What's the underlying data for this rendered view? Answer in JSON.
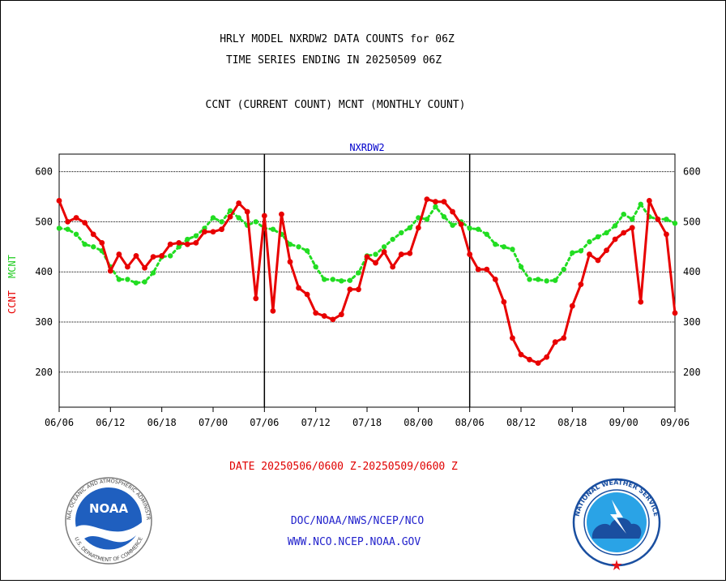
{
  "titles": {
    "line1": "HRLY MODEL NXRDW2 DATA COUNTS for 06Z",
    "line2": "TIME SERIES ENDING IN 20250509 06Z",
    "line3": "CCNT (CURRENT COUNT) MCNT (MONTHLY COUNT)"
  },
  "footer": {
    "date_range": "DATE 20250506/0600 Z-20250509/0600 Z",
    "org": "DOC/NOAA/NWS/NCEP/NCO",
    "url": "WWW.NCO.NCEP.NOAA.GOV"
  },
  "logos": {
    "noaa_word": "NOAA",
    "noaa_ring_top": "NATIONAL OCEANIC AND ATMOSPHERIC ADMINISTRATION",
    "noaa_ring_bottom": "U.S. DEPARTMENT OF COMMERCE",
    "nws_ring": "NATIONAL WEATHER SERVICE"
  },
  "colors": {
    "ccnt": "#e80000",
    "mcnt": "#22dd22",
    "dataset_label": "#0000cc",
    "footer_link": "#2222cc",
    "date_text": "#e00000"
  },
  "chart_data": {
    "type": "line",
    "subtitle": "NXRDW2",
    "ylabel_left": [
      "CCNT",
      "MCNT"
    ],
    "ylim": [
      130,
      635
    ],
    "yticks": [
      200,
      300,
      400,
      500,
      600
    ],
    "grid": true,
    "x_ticks": [
      "06/06",
      "06/12",
      "06/18",
      "07/00",
      "07/06",
      "07/12",
      "07/18",
      "08/00",
      "08/06",
      "08/12",
      "08/18",
      "09/00",
      "09/06"
    ],
    "day_dividers": [
      "07/06",
      "08/06"
    ],
    "series": [
      {
        "name": "CCNT",
        "color": "#e80000",
        "values": [
          542,
          500,
          508,
          498,
          475,
          458,
          402,
          435,
          410,
          432,
          408,
          430,
          432,
          455,
          458,
          455,
          458,
          480,
          480,
          485,
          510,
          537,
          520,
          347,
          512,
          322,
          515,
          420,
          368,
          355,
          318,
          312,
          305,
          315,
          365,
          365,
          430,
          418,
          440,
          410,
          435,
          437,
          488,
          545,
          540,
          540,
          520,
          495,
          435,
          405,
          405,
          385,
          340,
          268,
          235,
          225,
          218,
          230,
          260,
          268,
          332,
          375,
          435,
          423,
          443,
          465,
          478,
          488,
          340,
          542,
          505,
          475,
          318
        ]
      },
      {
        "name": "MCNT",
        "color": "#22dd22",
        "values": [
          487,
          485,
          475,
          455,
          450,
          442,
          410,
          385,
          385,
          378,
          380,
          398,
          430,
          432,
          450,
          465,
          472,
          487,
          508,
          500,
          522,
          508,
          493,
          500,
          487,
          485,
          475,
          455,
          450,
          442,
          410,
          385,
          385,
          382,
          383,
          398,
          432,
          435,
          450,
          465,
          478,
          488,
          508,
          505,
          530,
          510,
          493,
          500,
          487,
          485,
          475,
          455,
          450,
          445,
          410,
          385,
          385,
          382,
          383,
          405,
          438,
          442,
          460,
          470,
          478,
          492,
          515,
          505,
          535,
          510,
          505,
          505,
          497
        ]
      }
    ]
  }
}
